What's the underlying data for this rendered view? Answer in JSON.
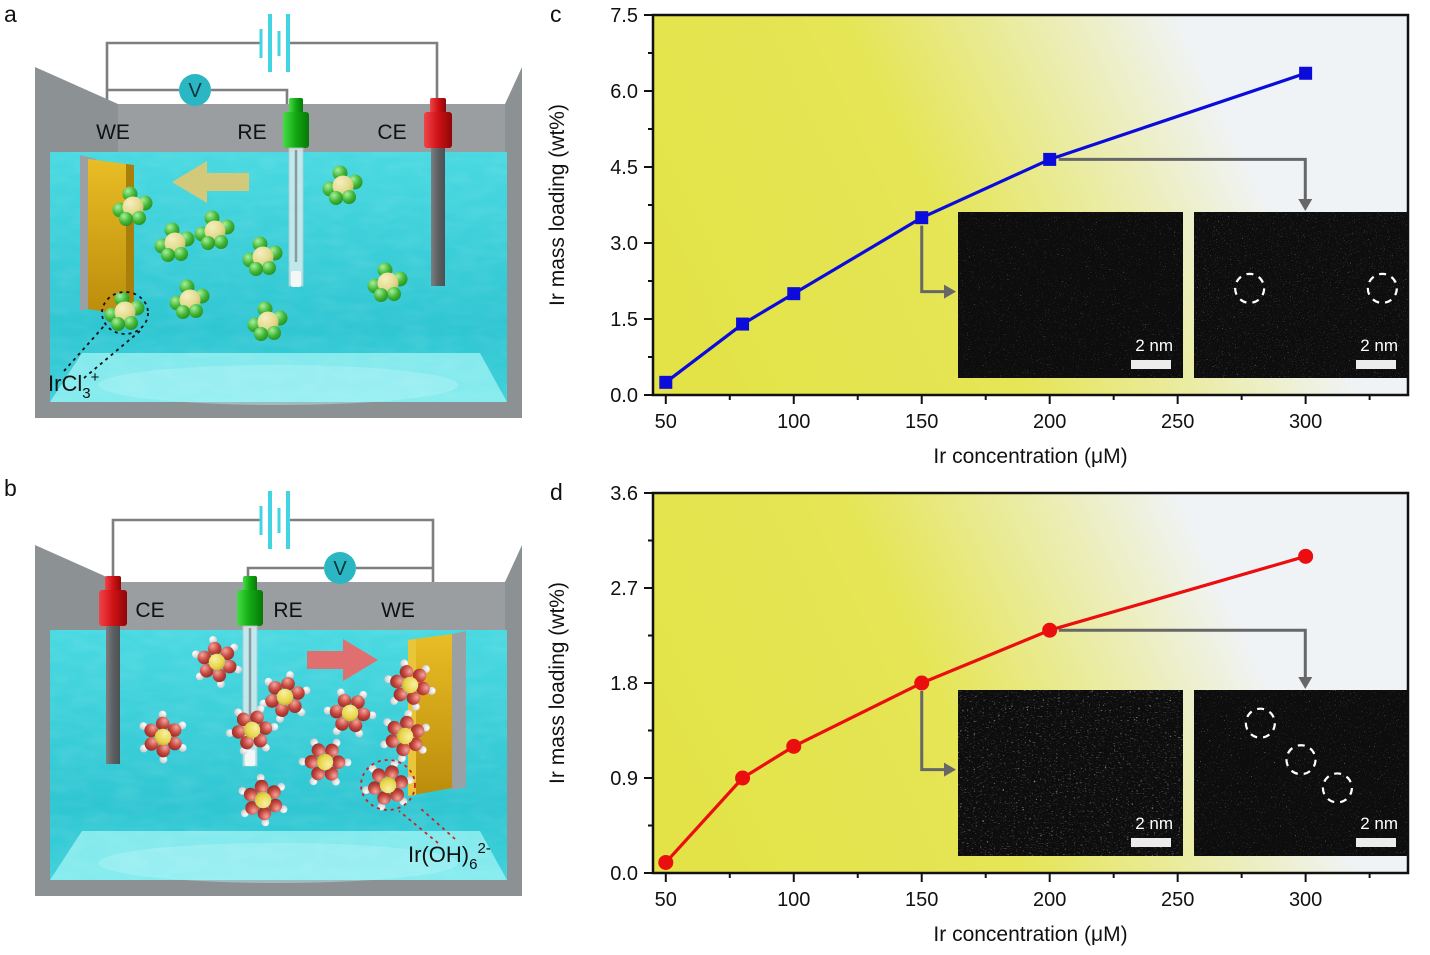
{
  "panel_a": {
    "label": "a",
    "electrodes": {
      "we": "WE",
      "re": "RE",
      "ce": "CE"
    },
    "voltmeter": "V",
    "species": {
      "base": "IrCl",
      "sub": "3",
      "sup": "+"
    },
    "arrow_direction": "left",
    "colors": {
      "arrow": "#d3c97b",
      "ion_core": "#e3da8e",
      "ion_ligand": "#3fb535",
      "water": "#3ed2dc",
      "tank": "#8c9194",
      "meter": "#2ab7c3",
      "battery": "#41d4e2"
    }
  },
  "panel_b": {
    "label": "b",
    "electrodes": {
      "ce": "CE",
      "re": "RE",
      "we": "WE"
    },
    "voltmeter": "V",
    "species": {
      "base": "Ir(OH)",
      "sub": "6",
      "sup": "2-"
    },
    "arrow_direction": "right",
    "colors": {
      "arrow": "#e07070",
      "ion_core": "#e8d54a",
      "ion_ligand": "#c4453d",
      "ion_hydrogen": "#f4f4f4",
      "water": "#3ed2dc",
      "tank": "#8c9194",
      "meter": "#2ab7c3",
      "battery": "#41d4e2"
    }
  },
  "chart_data": [
    {
      "id": "c",
      "panel_label": "c",
      "type": "line",
      "x": [
        50,
        80,
        100,
        150,
        200,
        300
      ],
      "y": [
        0.25,
        1.4,
        2.0,
        3.5,
        4.65,
        6.35
      ],
      "marker": "square",
      "color": "#0b0bdc",
      "xlabel": "Ir concentration (μM)",
      "ylabel": "Ir mass loading (wt%)",
      "xlim": [
        45,
        340
      ],
      "ylim": [
        0,
        7.5
      ],
      "xticks": [
        50,
        100,
        150,
        200,
        250,
        300
      ],
      "yticks": [
        "0.0",
        "1.5",
        "3.0",
        "4.5",
        "6.0",
        "7.5"
      ],
      "grid": false,
      "legend": "none",
      "background_gradient": [
        "#e3e348",
        "#f0f3f6"
      ],
      "insets": [
        {
          "position": "left",
          "scale_bar": "2 nm",
          "circles": []
        },
        {
          "position": "right",
          "scale_bar": "2 nm",
          "circles": [
            [
              0.26,
              0.46
            ],
            [
              0.88,
              0.46
            ]
          ]
        }
      ],
      "inset_links": [
        {
          "from_x": 150,
          "to_inset": "left"
        },
        {
          "from_x": 200,
          "to_inset": "right"
        }
      ]
    },
    {
      "id": "d",
      "panel_label": "d",
      "type": "line",
      "x": [
        50,
        80,
        100,
        150,
        200,
        300
      ],
      "y": [
        0.1,
        0.9,
        1.2,
        1.8,
        2.3,
        3.0
      ],
      "marker": "circle",
      "color": "#ea0e0e",
      "xlabel": "Ir concentration (μM)",
      "ylabel": "Ir mass loading (wt%)",
      "xlim": [
        45,
        340
      ],
      "ylim": [
        0,
        3.6
      ],
      "xticks": [
        50,
        100,
        150,
        200,
        250,
        300
      ],
      "yticks": [
        "0.0",
        "0.9",
        "1.8",
        "2.7",
        "3.6"
      ],
      "grid": false,
      "legend": "none",
      "background_gradient": [
        "#e3e348",
        "#f0f3f6"
      ],
      "insets": [
        {
          "position": "left",
          "scale_bar": "2 nm",
          "circles": []
        },
        {
          "position": "right",
          "scale_bar": "2 nm",
          "circles": [
            [
              0.31,
              0.2
            ],
            [
              0.5,
              0.42
            ],
            [
              0.67,
              0.59
            ]
          ]
        }
      ],
      "inset_links": [
        {
          "from_x": 150,
          "to_inset": "left"
        },
        {
          "from_x": 200,
          "to_inset": "right"
        }
      ]
    }
  ]
}
